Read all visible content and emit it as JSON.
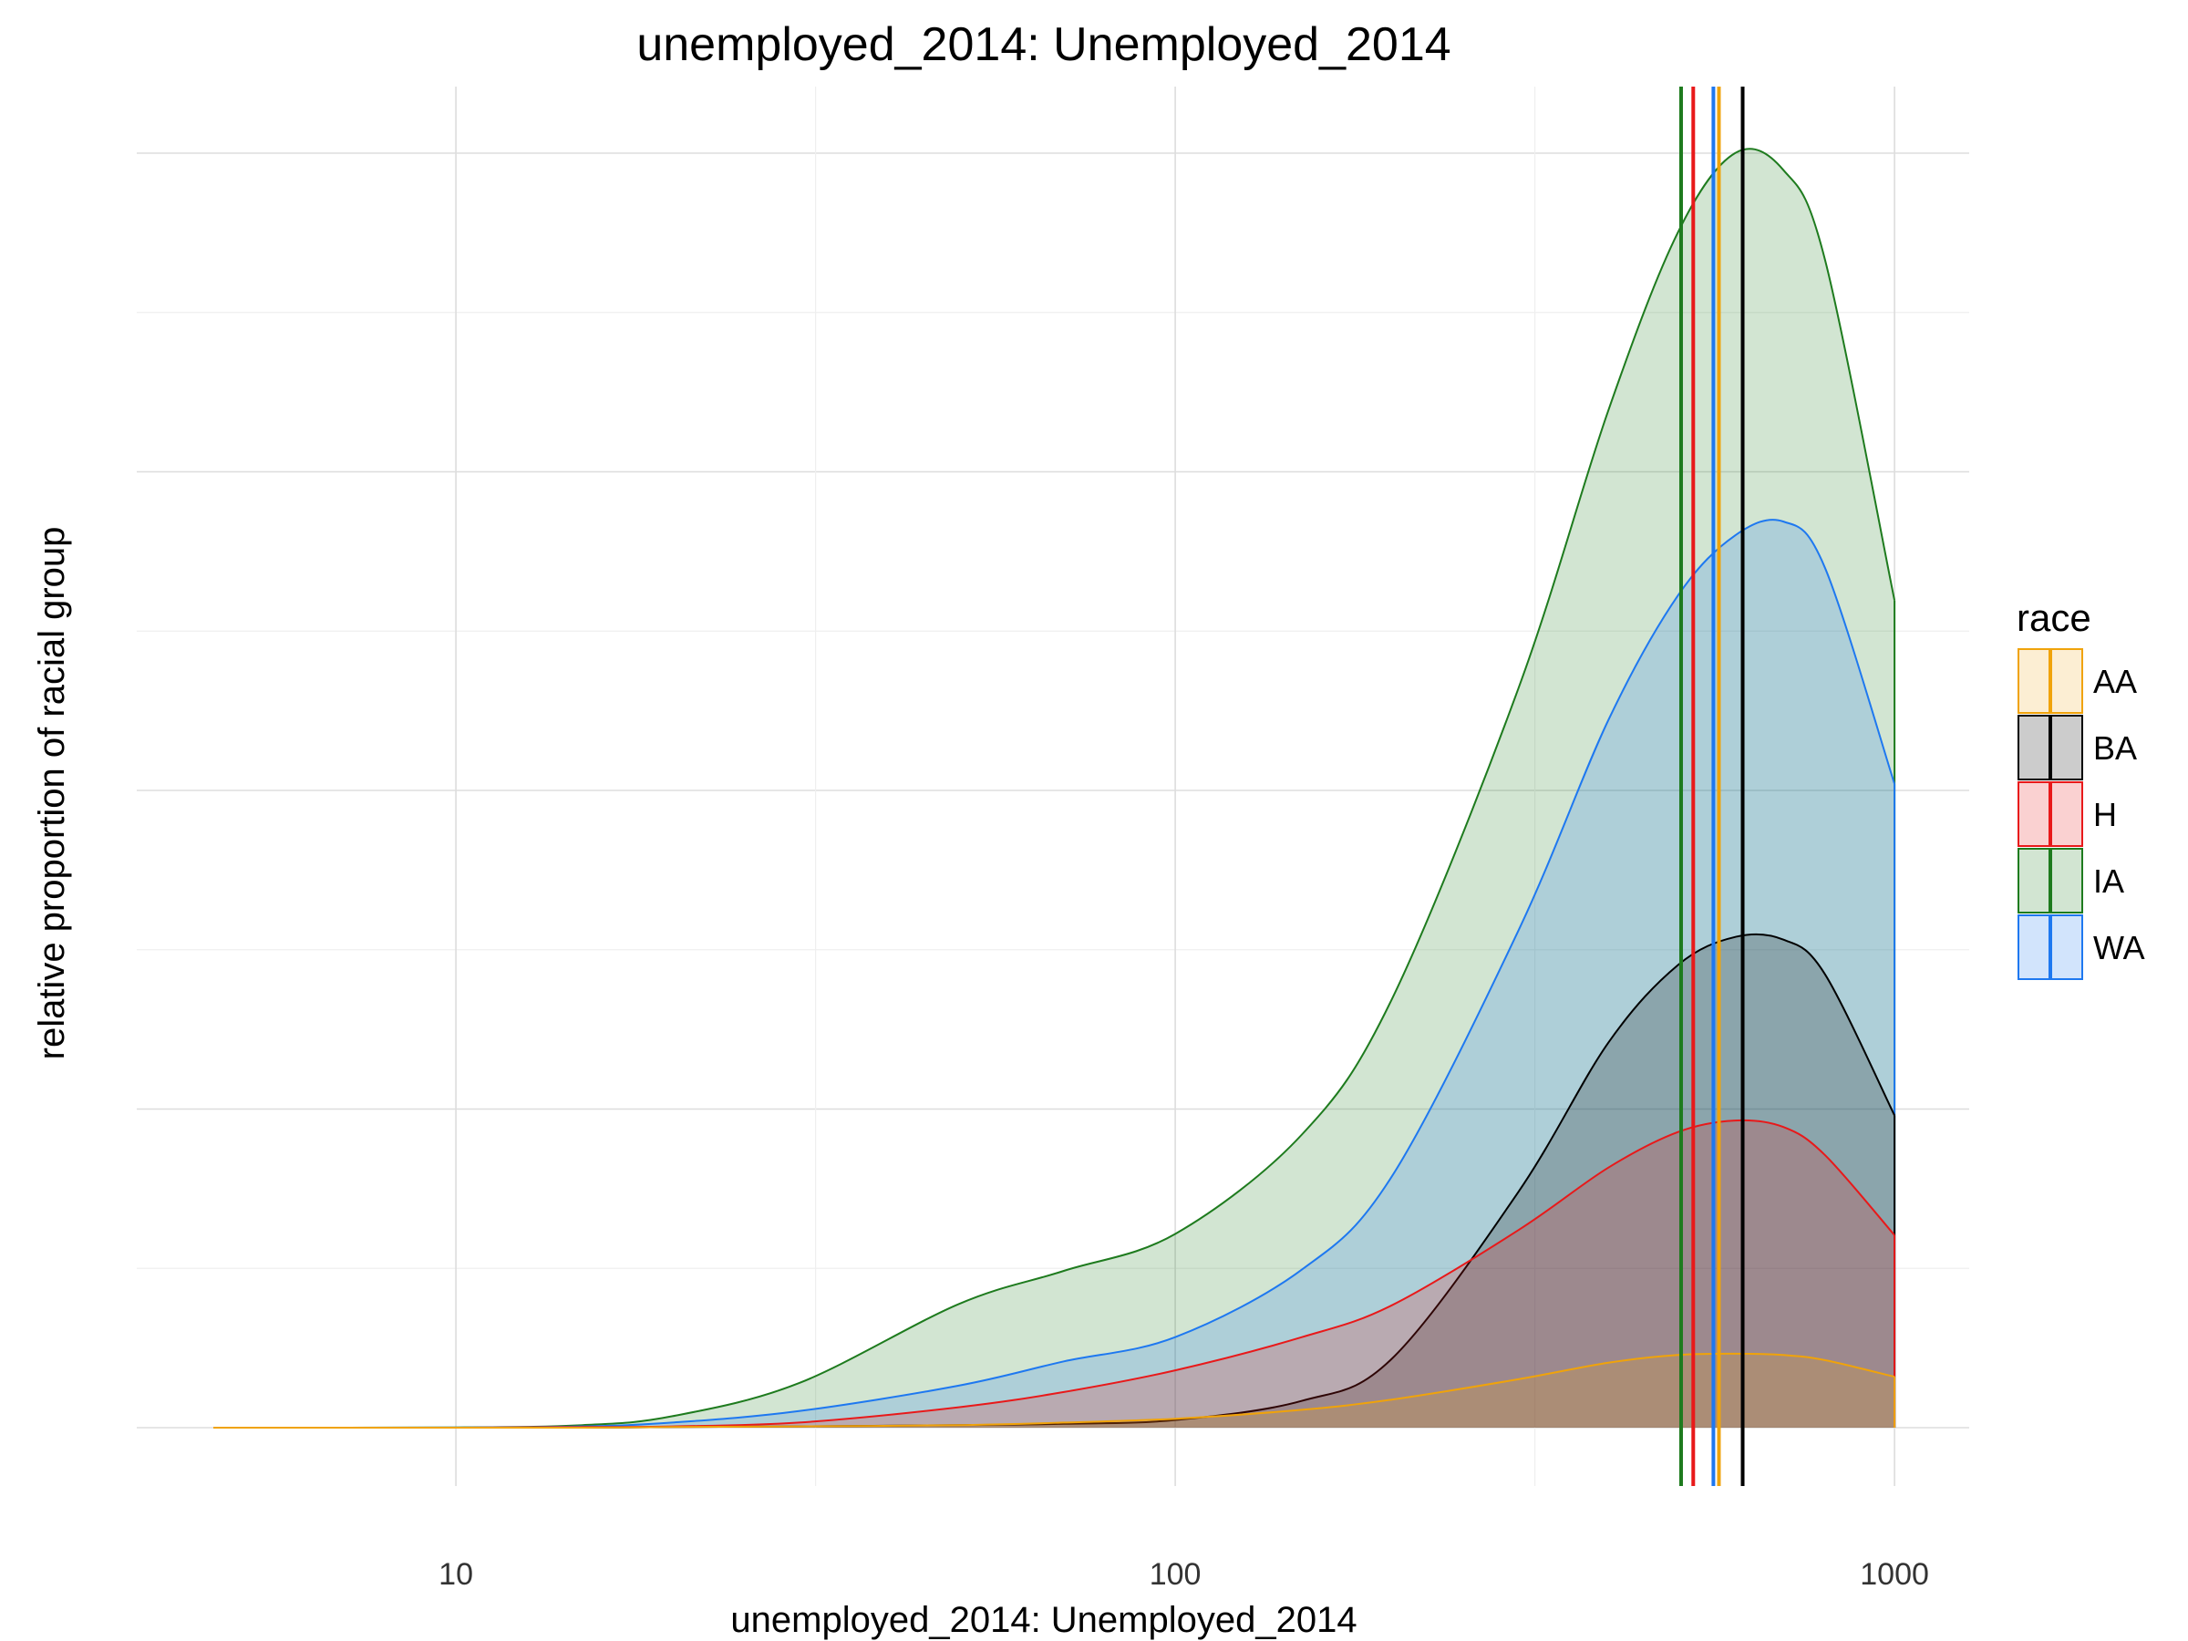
{
  "chart_data": {
    "type": "area",
    "title": "unemployed_2014: Unemployed_2014",
    "xlabel": "unemployed_2014: Unemployed_2014",
    "ylabel": "relative proportion of racial group",
    "x_scale": "log10",
    "xlim": [
      3.6,
      1270
    ],
    "x_ticks": [
      10,
      100,
      1000
    ],
    "x_tick_labels": [
      "10",
      "100",
      "1000"
    ],
    "ylim": [
      0,
      1.0
    ],
    "grid": true,
    "y_tick_labels_shown": false,
    "legend": {
      "title": "race",
      "placement": "right"
    },
    "x": [
      4.6,
      10,
      15,
      20,
      30,
      50,
      70,
      100,
      150,
      200,
      300,
      400,
      500,
      600,
      700,
      800,
      1000
    ],
    "series": [
      {
        "name": "AA",
        "color": "#F0A30A",
        "fill_opacity": 0.18,
        "values": [
          0,
          0,
          0,
          0.0005,
          0.001,
          0.002,
          0.004,
          0.007,
          0.014,
          0.022,
          0.038,
          0.051,
          0.057,
          0.058,
          0.057,
          0.053,
          0.04
        ],
        "median": 570
      },
      {
        "name": "BA",
        "color": "#000000",
        "fill_opacity": 0.2,
        "values": [
          0,
          0,
          0,
          0.0005,
          0.001,
          0.002,
          0.003,
          0.006,
          0.021,
          0.054,
          0.185,
          0.302,
          0.363,
          0.385,
          0.383,
          0.356,
          0.245
        ],
        "median": 615
      },
      {
        "name": "H",
        "color": "#E8191A",
        "fill_opacity": 0.2,
        "values": [
          0,
          0,
          0.0005,
          0.001,
          0.004,
          0.016,
          0.028,
          0.045,
          0.071,
          0.096,
          0.155,
          0.204,
          0.232,
          0.241,
          0.236,
          0.214,
          0.151
        ],
        "median": 525
      },
      {
        "name": "IA",
        "color": "#1E7B1E",
        "fill_opacity": 0.2,
        "values": [
          0,
          0.0002,
          0.002,
          0.009,
          0.035,
          0.097,
          0.123,
          0.152,
          0.23,
          0.336,
          0.58,
          0.798,
          0.938,
          1.0,
          0.987,
          0.917,
          0.649
        ],
        "median": 505
      },
      {
        "name": "WA",
        "color": "#1E78F0",
        "fill_opacity": 0.2,
        "values": [
          0,
          0.0001,
          0.001,
          0.004,
          0.013,
          0.033,
          0.052,
          0.071,
          0.124,
          0.197,
          0.39,
          0.555,
          0.653,
          0.7,
          0.711,
          0.675,
          0.505
        ],
        "median": 560
      }
    ]
  }
}
